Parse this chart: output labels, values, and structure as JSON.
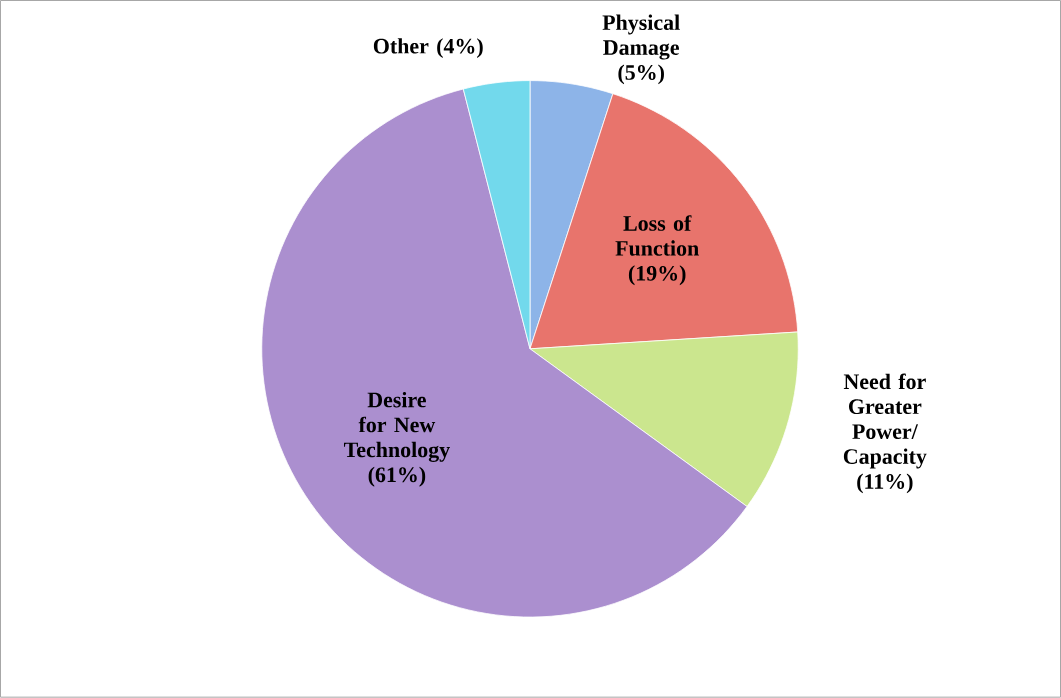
{
  "chart_data": {
    "type": "pie",
    "categories": [
      "Physical Damage",
      "Loss of Function",
      "Need for Greater Power/ Capacity",
      "Desire for New Technology",
      "Other"
    ],
    "values": [
      5,
      19,
      11,
      61,
      4
    ],
    "value_labels": [
      "(5%)",
      "(19%)",
      "(11%)",
      "(61%)",
      "(4%)"
    ],
    "colors": [
      "#8db4e8",
      "#e8746c",
      "#cbe68e",
      "#ab8fcf",
      "#72d9ec"
    ]
  }
}
